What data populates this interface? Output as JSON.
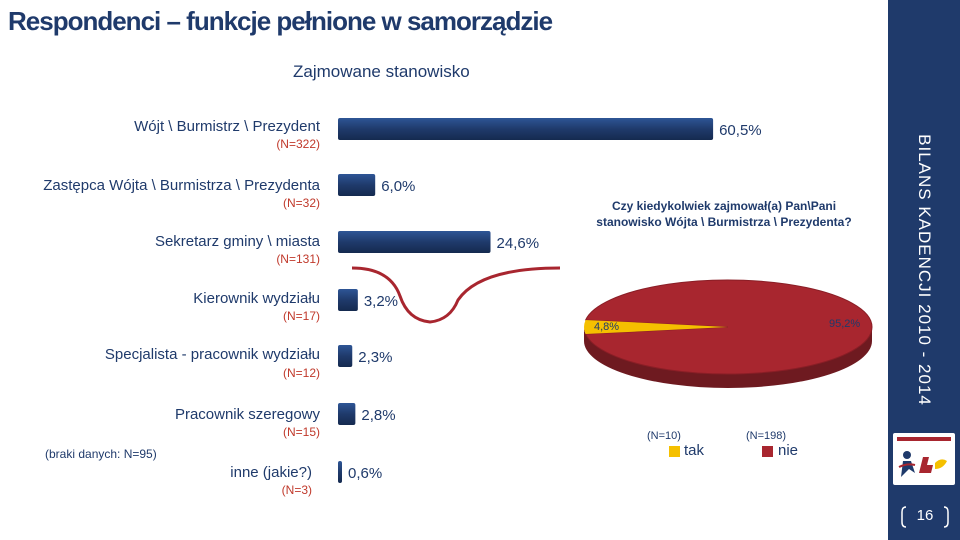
{
  "title": "Respondenci – funkcje pełnione w samorządzie",
  "sidebar_text": "BILANS KADENCJI  2010 - 2014",
  "page_number": "16",
  "missing_note": "(braki danych: N=95)",
  "colors": {
    "bar": "#1F3A6B",
    "pie_main": "#A8262F",
    "pie_small": "#F5C000",
    "text": "#1F3A6B",
    "n_label": "#C0392B"
  },
  "chart_data": [
    {
      "type": "bar",
      "title": "Zajmowane stanowisko",
      "categories": [
        {
          "label": "Wójt \\ Burmistrz \\ Prezydent",
          "n": "(N=322)"
        },
        {
          "label": "Zastępca Wójta \\ Burmistrza \\ Prezydenta",
          "n": "(N=32)"
        },
        {
          "label": "Sekretarz gminy \\ miasta",
          "n": "(N=131)"
        },
        {
          "label": "Kierownik wydziału",
          "n": "(N=17)"
        },
        {
          "label": "Specjalista - pracownik wydziału",
          "n": "(N=12)"
        },
        {
          "label": "Pracownik szeregowy",
          "n": "(N=15)"
        },
        {
          "label": "inne (jakie?)",
          "n": "(N=3)"
        }
      ],
      "values": [
        60.5,
        6.0,
        24.6,
        3.2,
        2.3,
        2.8,
        0.6
      ],
      "value_labels": [
        "60,5%",
        "6,0%",
        "24,6%",
        "3,2%",
        "2,3%",
        "2,8%",
        "0,6%"
      ],
      "xlim": [
        0,
        100
      ]
    },
    {
      "type": "pie",
      "title": "Czy kiedykolwiek zajmował(a) Pan\\Pani stanowisko Wójta \\ Burmistrza \\ Prezydenta?",
      "values": [
        4.8,
        95.2
      ],
      "value_labels": [
        "4,8%",
        "95,2%"
      ],
      "legend": [
        {
          "name": "tak",
          "n": "(N=10)",
          "color": "#F5C000"
        },
        {
          "name": "nie",
          "n": "(N=198)",
          "color": "#A8262F"
        }
      ]
    }
  ]
}
